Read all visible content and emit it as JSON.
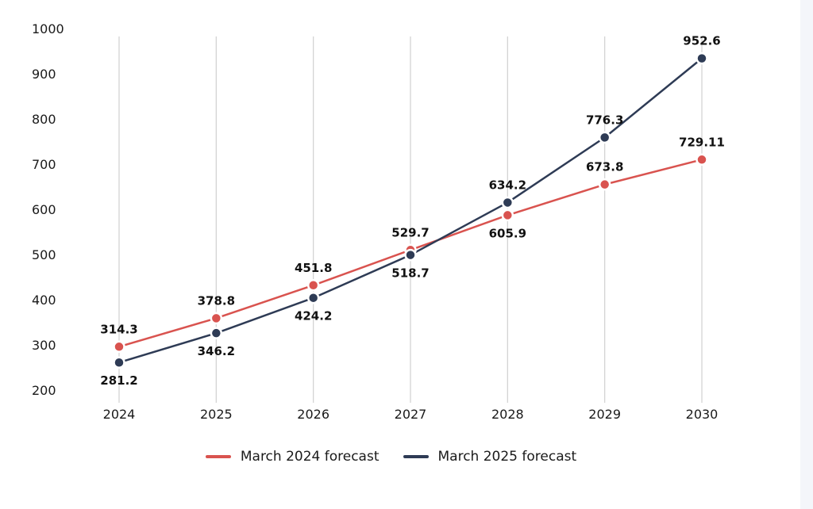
{
  "chart_data": {
    "type": "line",
    "x": [
      "2024",
      "2025",
      "2026",
      "2027",
      "2028",
      "2029",
      "2030"
    ],
    "ylim": [
      200,
      1000
    ],
    "yticks": [
      200,
      300,
      400,
      500,
      600,
      700,
      800,
      900,
      1000
    ],
    "grid": "vertical",
    "legend_position": "bottom-center",
    "series": [
      {
        "name": "March 2024 forecast",
        "color": "#d9534f",
        "values": [
          296,
          359,
          432,
          510,
          587,
          655,
          710
        ],
        "labels": [
          "314.3",
          "378.8",
          "451.8",
          "529.7",
          "605.9",
          "673.8",
          "729.11"
        ],
        "label_positions": [
          "above",
          "above",
          "above",
          "above",
          "below",
          "above",
          "above"
        ]
      },
      {
        "name": "March 2025 forecast",
        "color": "#2e3b55",
        "values": [
          261,
          326,
          404,
          499,
          615,
          759,
          934
        ],
        "labels": [
          "281.2",
          "346.2",
          "424.2",
          "518.7",
          "634.2",
          "776.3",
          "952.6"
        ],
        "label_positions": [
          "below",
          "below",
          "below",
          "below",
          "above",
          "above",
          "above"
        ]
      }
    ]
  }
}
